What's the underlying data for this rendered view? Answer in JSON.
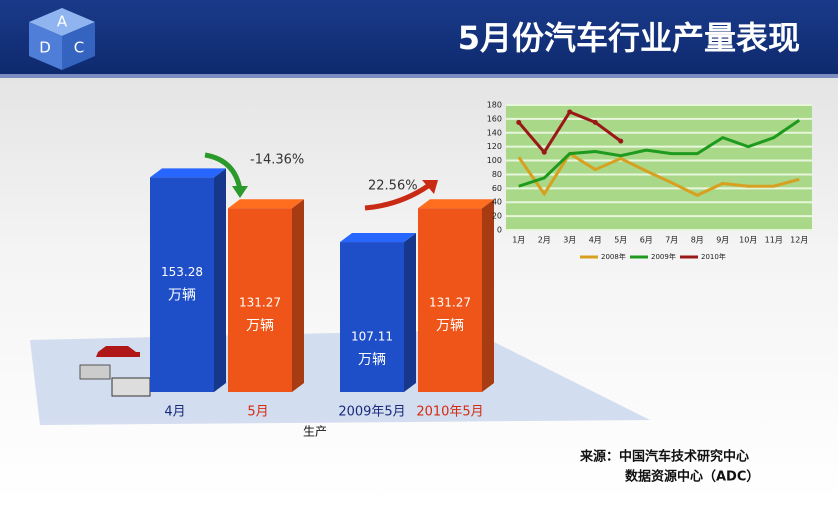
{
  "header": {
    "title": "5月份汽车行业产量表现",
    "logo": [
      "A",
      "D",
      "C"
    ]
  },
  "chart_data": [
    {
      "type": "bar3d",
      "categories": [
        "4月",
        "5月",
        "2009年5月",
        "2010年5月"
      ],
      "values": [
        153.28,
        131.27,
        107.11,
        131.27
      ],
      "unit": "万辆",
      "colors": [
        "#1f4fc8",
        "#ef5418",
        "#1f4fc8",
        "#ef5418"
      ],
      "label_colors": [
        "#1a2a7a",
        "#d42a10",
        "#1a2a7a",
        "#d42a10"
      ],
      "xlabel": "生产",
      "annotations": [
        "-14.36%",
        "22.56%"
      ]
    },
    {
      "type": "line",
      "categories": [
        "1月",
        "2月",
        "3月",
        "4月",
        "5月",
        "6月",
        "7月",
        "8月",
        "9月",
        "10月",
        "11月",
        "12月"
      ],
      "ylim": [
        0,
        180
      ],
      "yticks": [
        0,
        20,
        40,
        60,
        80,
        100,
        120,
        140,
        160,
        180
      ],
      "grid": true,
      "series": [
        {
          "name": "2008年",
          "color": "#d8a020",
          "values": [
            105,
            52,
            110,
            87,
            103,
            85,
            68,
            50,
            67,
            63,
            63,
            73
          ]
        },
        {
          "name": "2009年",
          "color": "#1e9a1e",
          "values": [
            63,
            75,
            110,
            113,
            107,
            115,
            110,
            110,
            133,
            120,
            133,
            158
          ]
        },
        {
          "name": "2010年",
          "color": "#9a1818",
          "values": [
            155,
            112,
            170,
            155,
            128,
            null,
            null,
            null,
            null,
            null,
            null,
            null
          ]
        }
      ]
    }
  ],
  "source": [
    "来源：中国汽车技术研究中心",
    "数据资源中心（ADC）"
  ]
}
